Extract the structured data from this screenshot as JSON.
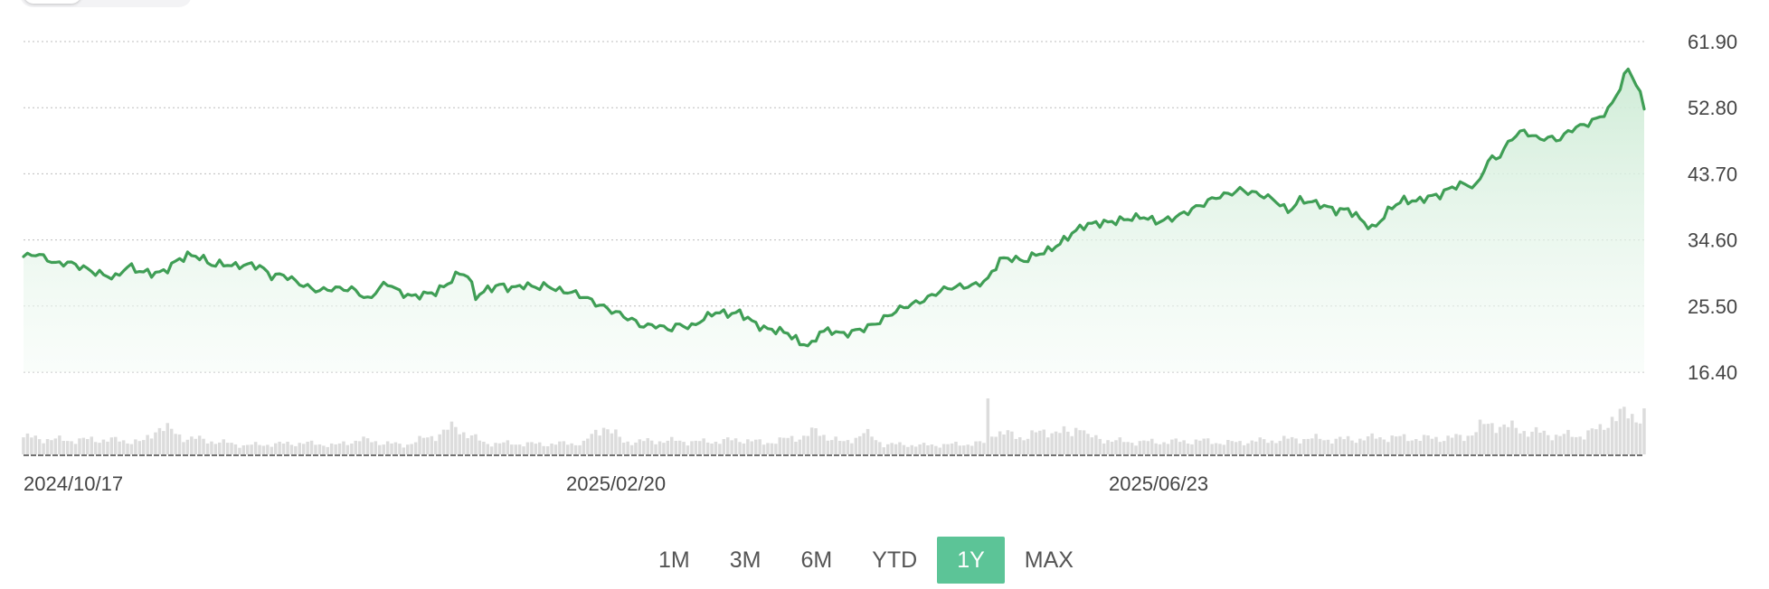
{
  "chart_data": {
    "type": "area",
    "ylim": [
      16.4,
      61.9
    ],
    "y_ticks": [
      "61.90",
      "52.80",
      "43.70",
      "34.60",
      "25.50",
      "16.40"
    ],
    "x_ticks": [
      "2024/10/17",
      "2025/02/20",
      "2025/06/23"
    ],
    "grid": true,
    "line_color": "#3f9e55",
    "fill_color": "#d6efdc",
    "volume_color": "#dcdcdc",
    "price_keyframes": [
      [
        0,
        32.3
      ],
      [
        3,
        32.7
      ],
      [
        6,
        32.0
      ],
      [
        8,
        31.3
      ],
      [
        11,
        31.5
      ],
      [
        14,
        31.0
      ],
      [
        17,
        30.3
      ],
      [
        20,
        29.8
      ],
      [
        23,
        29.4
      ],
      [
        26,
        31.0
      ],
      [
        29,
        30.3
      ],
      [
        32,
        30.0
      ],
      [
        35,
        30.2
      ],
      [
        38,
        31.6
      ],
      [
        41,
        32.5
      ],
      [
        44,
        32.3
      ],
      [
        47,
        31.2
      ],
      [
        50,
        31.3
      ],
      [
        53,
        31.0
      ],
      [
        56,
        31.2
      ],
      [
        59,
        31.0
      ],
      [
        62,
        29.6
      ],
      [
        65,
        29.8
      ],
      [
        68,
        28.9
      ],
      [
        71,
        28.1
      ],
      [
        74,
        27.6
      ],
      [
        77,
        27.9
      ],
      [
        80,
        27.9
      ],
      [
        83,
        27.7
      ],
      [
        86,
        26.3
      ],
      [
        89,
        28.0
      ],
      [
        91,
        28.7
      ],
      [
        94,
        27.4
      ],
      [
        97,
        26.8
      ],
      [
        100,
        27.1
      ],
      [
        103,
        27.4
      ],
      [
        106,
        28.6
      ],
      [
        109,
        30.1
      ],
      [
        111,
        29.7
      ],
      [
        113,
        26.8
      ],
      [
        116,
        27.8
      ],
      [
        119,
        28.4
      ],
      [
        122,
        27.9
      ],
      [
        125,
        28.4
      ],
      [
        128,
        28.1
      ],
      [
        131,
        28.3
      ],
      [
        134,
        27.6
      ],
      [
        137,
        27.4
      ],
      [
        140,
        26.8
      ],
      [
        143,
        25.9
      ],
      [
        146,
        25.1
      ],
      [
        149,
        24.4
      ],
      [
        152,
        23.6
      ],
      [
        155,
        22.7
      ],
      [
        158,
        22.9
      ],
      [
        161,
        22.3
      ],
      [
        164,
        22.9
      ],
      [
        167,
        22.6
      ],
      [
        170,
        23.8
      ],
      [
        173,
        24.7
      ],
      [
        176,
        24.4
      ],
      [
        179,
        24.6
      ],
      [
        182,
        23.4
      ],
      [
        185,
        22.4
      ],
      [
        188,
        22.2
      ],
      [
        191,
        21.8
      ],
      [
        194,
        20.4
      ],
      [
        197,
        20.1
      ],
      [
        199,
        22.0
      ],
      [
        202,
        22.1
      ],
      [
        205,
        21.6
      ],
      [
        208,
        22.1
      ],
      [
        211,
        22.6
      ],
      [
        214,
        23.4
      ],
      [
        217,
        24.5
      ],
      [
        220,
        25.4
      ],
      [
        223,
        25.9
      ],
      [
        226,
        26.6
      ],
      [
        229,
        27.6
      ],
      [
        232,
        28.1
      ],
      [
        235,
        28.2
      ],
      [
        238,
        28.4
      ],
      [
        241,
        29.2
      ],
      [
        244,
        31.9
      ],
      [
        247,
        32.1
      ],
      [
        250,
        31.7
      ],
      [
        253,
        32.6
      ],
      [
        256,
        33.1
      ],
      [
        259,
        34.1
      ],
      [
        262,
        35.5
      ],
      [
        265,
        36.6
      ],
      [
        268,
        36.9
      ],
      [
        271,
        37.0
      ],
      [
        274,
        37.3
      ],
      [
        277,
        37.6
      ],
      [
        280,
        37.8
      ],
      [
        283,
        37.1
      ],
      [
        286,
        37.4
      ],
      [
        289,
        38.0
      ],
      [
        292,
        38.8
      ],
      [
        295,
        39.6
      ],
      [
        298,
        40.5
      ],
      [
        301,
        40.9
      ],
      [
        304,
        41.5
      ],
      [
        307,
        41.1
      ],
      [
        310,
        40.7
      ],
      [
        313,
        40.0
      ],
      [
        316,
        38.5
      ],
      [
        319,
        40.1
      ],
      [
        322,
        39.8
      ],
      [
        325,
        39.3
      ],
      [
        328,
        38.6
      ],
      [
        331,
        38.8
      ],
      [
        334,
        37.5
      ],
      [
        337,
        36.1
      ],
      [
        339,
        37.2
      ],
      [
        342,
        39.2
      ],
      [
        345,
        40.1
      ],
      [
        348,
        39.9
      ],
      [
        351,
        40.5
      ],
      [
        354,
        40.8
      ],
      [
        357,
        41.9
      ],
      [
        360,
        42.3
      ],
      [
        363,
        41.9
      ],
      [
        366,
        45.5
      ],
      [
        369,
        46.2
      ],
      [
        372,
        48.7
      ],
      [
        375,
        49.6
      ],
      [
        378,
        48.6
      ],
      [
        381,
        48.6
      ],
      [
        384,
        48.5
      ],
      [
        387,
        49.9
      ],
      [
        390,
        50.4
      ],
      [
        393,
        51.2
      ],
      [
        396,
        52.4
      ],
      [
        399,
        55.6
      ],
      [
        401,
        58.3
      ],
      [
        403,
        56.0
      ],
      [
        405,
        53.0
      ]
    ],
    "volume_keyframes": [
      [
        0,
        0.3
      ],
      [
        10,
        0.25
      ],
      [
        20,
        0.26
      ],
      [
        30,
        0.22
      ],
      [
        34,
        0.5
      ],
      [
        40,
        0.3
      ],
      [
        55,
        0.16
      ],
      [
        70,
        0.2
      ],
      [
        78,
        0.16
      ],
      [
        84,
        0.26
      ],
      [
        95,
        0.16
      ],
      [
        103,
        0.34
      ],
      [
        108,
        0.48
      ],
      [
        115,
        0.2
      ],
      [
        130,
        0.18
      ],
      [
        140,
        0.2
      ],
      [
        143,
        0.38
      ],
      [
        145,
        0.52
      ],
      [
        150,
        0.22
      ],
      [
        160,
        0.24
      ],
      [
        170,
        0.22
      ],
      [
        180,
        0.26
      ],
      [
        185,
        0.2
      ],
      [
        195,
        0.32
      ],
      [
        198,
        0.4
      ],
      [
        205,
        0.2
      ],
      [
        210,
        0.38
      ],
      [
        215,
        0.18
      ],
      [
        225,
        0.16
      ],
      [
        235,
        0.18
      ],
      [
        240,
        0.2
      ],
      [
        241,
        0.88
      ],
      [
        242,
        0.4
      ],
      [
        250,
        0.3
      ],
      [
        256,
        0.42
      ],
      [
        262,
        0.36
      ],
      [
        264,
        0.58
      ],
      [
        266,
        0.3
      ],
      [
        275,
        0.22
      ],
      [
        285,
        0.22
      ],
      [
        295,
        0.24
      ],
      [
        300,
        0.2
      ],
      [
        310,
        0.24
      ],
      [
        320,
        0.28
      ],
      [
        330,
        0.26
      ],
      [
        340,
        0.3
      ],
      [
        350,
        0.28
      ],
      [
        360,
        0.3
      ],
      [
        364,
        0.48
      ],
      [
        368,
        0.54
      ],
      [
        372,
        0.46
      ],
      [
        380,
        0.36
      ],
      [
        388,
        0.32
      ],
      [
        394,
        0.44
      ],
      [
        397,
        0.66
      ],
      [
        400,
        0.68
      ],
      [
        405,
        0.7
      ]
    ]
  },
  "range_buttons": [
    {
      "label": "1M",
      "active": false
    },
    {
      "label": "3M",
      "active": false
    },
    {
      "label": "6M",
      "active": false
    },
    {
      "label": "YTD",
      "active": false
    },
    {
      "label": "1Y",
      "active": true
    },
    {
      "label": "MAX",
      "active": false
    }
  ]
}
